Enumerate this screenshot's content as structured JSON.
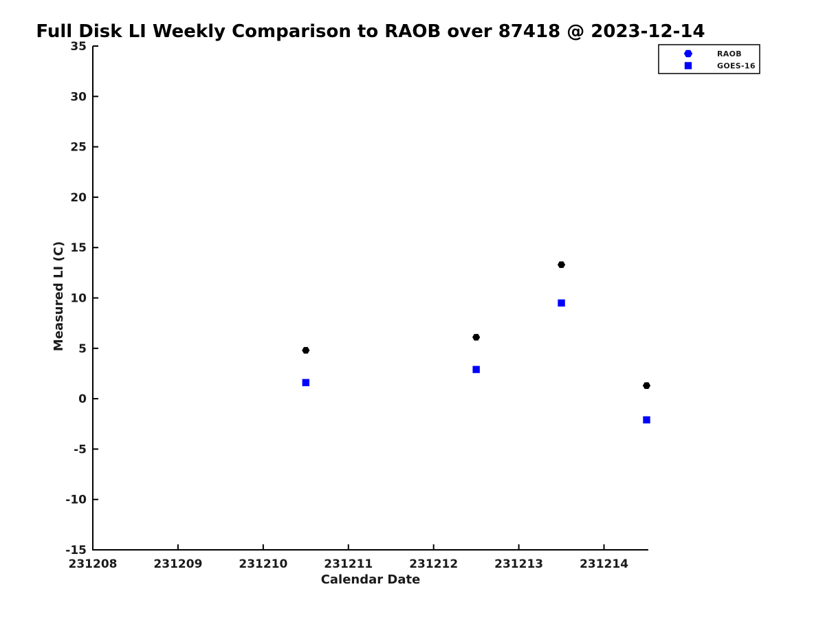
{
  "chart_data": {
    "type": "scatter",
    "title": "Full Disk LI Weekly Comparison to RAOB over 87418 @ 2023-12-14",
    "xlabel": "Calendar Date",
    "ylabel": "Measured LI (C)",
    "xlim": [
      231208,
      231214.52
    ],
    "ylim": [
      -15,
      35
    ],
    "xticks": [
      231208,
      231209,
      231210,
      231211,
      231212,
      231213,
      231214
    ],
    "yticks": [
      -15,
      -10,
      -5,
      0,
      5,
      10,
      15,
      20,
      25,
      30,
      35
    ],
    "grid": false,
    "legend_position": "top-right",
    "axis_color": "#000000",
    "background_color": "#ffffff",
    "series": [
      {
        "name": "RAOB",
        "marker": "hexagon",
        "color": "#000000",
        "legend_color": "#0000ff",
        "points": [
          {
            "x": 231210.5,
            "y": 4.8
          },
          {
            "x": 231212.5,
            "y": 6.1
          },
          {
            "x": 231213.5,
            "y": 13.3
          },
          {
            "x": 231214.5,
            "y": 1.3
          }
        ]
      },
      {
        "name": "GOES-16",
        "marker": "square",
        "color": "#0000ff",
        "legend_color": "#0000ff",
        "points": [
          {
            "x": 231210.5,
            "y": 1.6
          },
          {
            "x": 231212.5,
            "y": 2.9
          },
          {
            "x": 231213.5,
            "y": 9.5
          },
          {
            "x": 231214.5,
            "y": -2.1
          }
        ]
      }
    ]
  }
}
